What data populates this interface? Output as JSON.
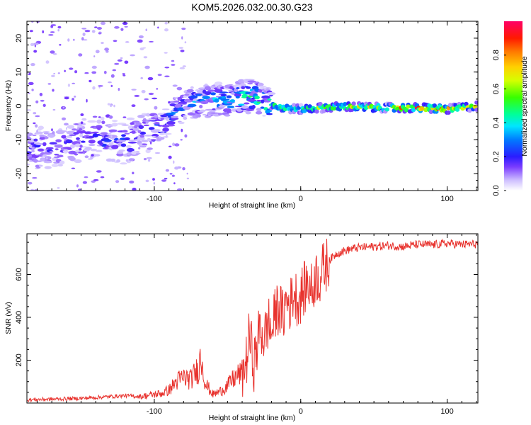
{
  "figure_title": "KOM5.2026.032.00.30.G23",
  "chart_data": [
    {
      "id": "spectrogram",
      "type": "heatmap",
      "title": "KOM5.2026.032.00.30.G23",
      "xlabel": "Height of straight line (km)",
      "ylabel": "Frequency (Hz)",
      "xlim": [
        -187,
        121
      ],
      "ylim": [
        -25,
        25
      ],
      "xticks": [
        -100,
        0,
        100
      ],
      "xtick_labels": [
        "-100",
        "0",
        "100"
      ],
      "yticks": [
        -20,
        -10,
        0,
        10,
        20
      ],
      "ytick_labels": [
        "-20",
        "-10",
        "0",
        "10",
        "20"
      ],
      "colorbar": {
        "label": "Normalized spectral amplitude",
        "range": [
          0,
          1
        ],
        "ticks": [
          0.0,
          0.2,
          0.4,
          0.6,
          0.8
        ],
        "tick_labels": [
          "0.0",
          "0.2",
          "0.4",
          "0.6",
          "0.8"
        ]
      },
      "ridge": [
        {
          "x": -185,
          "y": -12,
          "amp": 0.18
        },
        {
          "x": -170,
          "y": -13,
          "amp": 0.16
        },
        {
          "x": -155,
          "y": -11,
          "amp": 0.18
        },
        {
          "x": -140,
          "y": -10,
          "amp": 0.2
        },
        {
          "x": -125,
          "y": -11,
          "amp": 0.22
        },
        {
          "x": -110,
          "y": -9,
          "amp": 0.22
        },
        {
          "x": -95,
          "y": -6,
          "amp": 0.24
        },
        {
          "x": -85,
          "y": -1,
          "amp": 0.26
        },
        {
          "x": -75,
          "y": 1,
          "amp": 0.3
        },
        {
          "x": -60,
          "y": 1.5,
          "amp": 0.34
        },
        {
          "x": -45,
          "y": 2,
          "amp": 0.4
        },
        {
          "x": -35,
          "y": 3,
          "amp": 0.5
        },
        {
          "x": -25,
          "y": 1.5,
          "amp": 0.55
        },
        {
          "x": -15,
          "y": -0.5,
          "amp": 0.45
        },
        {
          "x": 0,
          "y": -1,
          "amp": 0.5
        },
        {
          "x": 15,
          "y": -0.5,
          "amp": 0.55
        },
        {
          "x": 30,
          "y": -0.2,
          "amp": 0.6
        },
        {
          "x": 50,
          "y": -0.5,
          "amp": 0.65
        },
        {
          "x": 70,
          "y": -0.6,
          "amp": 0.75
        },
        {
          "x": 85,
          "y": -0.6,
          "amp": 0.9
        },
        {
          "x": 100,
          "y": -1,
          "amp": 0.85
        },
        {
          "x": 110,
          "y": -0.5,
          "amp": 0.7
        },
        {
          "x": 121,
          "y": 0,
          "amp": 0.6
        }
      ]
    },
    {
      "id": "snr",
      "type": "line",
      "xlabel": "Height of straight line (km)",
      "ylabel": "SNR (v/v)",
      "xlim": [
        -187,
        121
      ],
      "ylim": [
        0,
        790
      ],
      "xticks": [
        -100,
        0,
        100
      ],
      "xtick_labels": [
        "-100",
        "0",
        "100"
      ],
      "yticks": [
        200,
        400,
        600
      ],
      "ytick_labels": [
        "200",
        "400",
        "600"
      ],
      "line_color": "#e8322d",
      "series": [
        {
          "name": "SNR",
          "x": [
            -187,
            -170,
            -150,
            -130,
            -120,
            -110,
            -100,
            -95,
            -90,
            -85,
            -80,
            -75,
            -70,
            -68,
            -65,
            -60,
            -55,
            -50,
            -45,
            -40,
            -37,
            -35,
            -32,
            -30,
            -28,
            -25,
            -22,
            -20,
            -17,
            -15,
            -12,
            -10,
            -7,
            -5,
            -2,
            0,
            3,
            5,
            8,
            10,
            13,
            15,
            18,
            20,
            25,
            30,
            35,
            40,
            50,
            60,
            70,
            80,
            90,
            100,
            110,
            121
          ],
          "y": [
            15,
            18,
            22,
            30,
            35,
            30,
            40,
            45,
            60,
            100,
            120,
            110,
            160,
            220,
            90,
            40,
            55,
            80,
            120,
            140,
            200,
            320,
            180,
            250,
            350,
            300,
            380,
            320,
            430,
            450,
            400,
            480,
            460,
            520,
            480,
            500,
            540,
            560,
            520,
            600,
            580,
            620,
            650,
            670,
            700,
            710,
            720,
            725,
            730,
            735,
            730,
            740,
            738,
            745,
            740,
            742
          ]
        }
      ]
    }
  ]
}
